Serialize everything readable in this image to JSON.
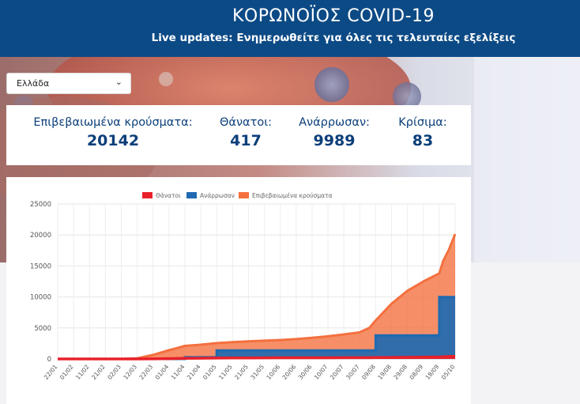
{
  "header": {
    "title": "ΚΟΡΩΝΟΪΟΣ COVID-19",
    "subtitle": "Live updates: Ενημερωθείτε για όλες τις τελευταίες εξελίξεις"
  },
  "country_select": {
    "value": "Ελλάδα"
  },
  "stats": [
    {
      "label": "Επιβεβαιωμένα κρούσματα:",
      "value": "20142"
    },
    {
      "label": "Θάνατοι:",
      "value": "417"
    },
    {
      "label": "Ανάρρωσαν:",
      "value": "9989"
    },
    {
      "label": "Κρίσιμα:",
      "value": "83"
    }
  ],
  "colors": {
    "header_bg": "#0c4a86",
    "deaths": "#e8202a",
    "recovered": "#1f6ab1",
    "confirmed": "#f4703e"
  },
  "chart_data": {
    "type": "area",
    "legend": [
      "Θάνατοι",
      "Ανάρρωσαν",
      "Επιβεβαιωμένα κρούσματα"
    ],
    "legend_position": "top",
    "ylim": [
      0,
      25000
    ],
    "y_ticks": [
      "0",
      "5000",
      "10000",
      "15000",
      "20000",
      "25000"
    ],
    "x_tick_labels": [
      "22/01",
      "01/02",
      "11/02",
      "21/02",
      "02/03",
      "12/03",
      "22/03",
      "01/04",
      "11/04",
      "21/04",
      "01/05",
      "11/05",
      "21/05",
      "31/05",
      "10/06",
      "20/06",
      "30/06",
      "10/07",
      "20/07",
      "30/07",
      "09/08",
      "19/08",
      "29/08",
      "08/09",
      "18/09",
      "05/10"
    ],
    "x": [
      "22/01",
      "01/02",
      "11/02",
      "21/02",
      "26/02",
      "02/03",
      "12/03",
      "22/03",
      "01/04",
      "06/04",
      "11/04",
      "21/04",
      "01/05",
      "11/05",
      "21/05",
      "31/05",
      "10/06",
      "20/06",
      "30/06",
      "10/07",
      "20/07",
      "30/07",
      "05/08",
      "09/08",
      "19/08",
      "29/08",
      "08/09",
      "18/09",
      "23/09",
      "28/09",
      "05/10"
    ],
    "series": [
      {
        "name": "Θάνατοι",
        "values": [
          0,
          0,
          0,
          0,
          0,
          0,
          5,
          15,
          50,
          80,
          100,
          120,
          140,
          150,
          160,
          175,
          185,
          190,
          192,
          195,
          200,
          205,
          210,
          215,
          240,
          260,
          290,
          320,
          360,
          390,
          417
        ]
      },
      {
        "name": "Ανάρρωσαν",
        "values": [
          0,
          0,
          0,
          0,
          0,
          0,
          0,
          0,
          0,
          0,
          270,
          270,
          1370,
          1370,
          1370,
          1370,
          1370,
          1370,
          1370,
          1370,
          1370,
          1370,
          1370,
          3800,
          3800,
          3800,
          3800,
          9989,
          9989,
          9989,
          9989
        ]
      },
      {
        "name": "Επιβεβαιωμένα κρούσματα",
        "values": [
          0,
          0,
          0,
          0,
          0,
          3,
          100,
          650,
          1400,
          1750,
          2100,
          2300,
          2550,
          2700,
          2850,
          2950,
          3050,
          3200,
          3400,
          3650,
          3950,
          4300,
          5000,
          6200,
          8900,
          11000,
          12500,
          13800,
          15800,
          17600,
          20142
        ]
      }
    ]
  }
}
